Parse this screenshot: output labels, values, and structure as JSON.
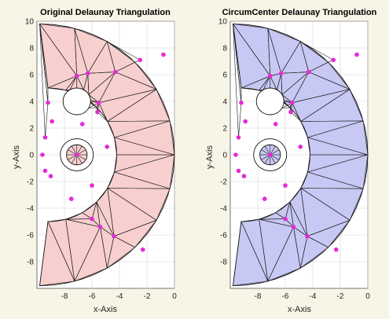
{
  "chart_data": [
    {
      "type": "scatter",
      "title": "Original Delaunay Triangulation",
      "xlabel": "x-Axis",
      "ylabel": "y-Axis",
      "xlim": [
        -10,
        0
      ],
      "ylim": [
        -10,
        10
      ],
      "xticks": [
        -8,
        -6,
        -4,
        -2,
        0
      ],
      "yticks": [
        -8,
        -6,
        -4,
        -2,
        0,
        2,
        4,
        6,
        8,
        10
      ],
      "grid": true,
      "domain_fill": "#f7cfcf",
      "point_color": "#e62ad8",
      "points": [
        [
          -7.1,
          5.9
        ],
        [
          -6.3,
          6.1
        ],
        [
          -4.3,
          6.2
        ],
        [
          -2.5,
          7.1
        ],
        [
          -0.8,
          7.5
        ],
        [
          -9.2,
          3.9
        ],
        [
          -5.5,
          3.9
        ],
        [
          -8.9,
          2.5
        ],
        [
          -6.7,
          2.3
        ],
        [
          -5.6,
          3.2
        ],
        [
          -9.4,
          1.3
        ],
        [
          -4.9,
          0.6
        ],
        [
          -9.6,
          0.0
        ],
        [
          -7.1,
          0.0
        ],
        [
          -9.4,
          -1.2
        ],
        [
          -9.0,
          -1.6
        ],
        [
          -6.0,
          -2.3
        ],
        [
          -7.5,
          -3.3
        ],
        [
          -6.0,
          -4.8
        ],
        [
          -5.4,
          -5.4
        ],
        [
          -4.4,
          -6.1
        ],
        [
          -2.3,
          -7.1
        ]
      ]
    },
    {
      "type": "scatter",
      "title": "CircumCenter Delaunay Triangulation",
      "xlabel": "x-Axis",
      "ylabel": "y-Axis",
      "xlim": [
        -10,
        0
      ],
      "ylim": [
        -10,
        10
      ],
      "xticks": [
        -8,
        -6,
        -4,
        -2,
        0
      ],
      "yticks": [
        -8,
        -6,
        -4,
        -2,
        0,
        2,
        4,
        6,
        8,
        10
      ],
      "grid": true,
      "domain_fill": "#c8c8f4",
      "point_color": "#e62ad8",
      "points": [
        [
          -7.1,
          5.9
        ],
        [
          -6.3,
          6.1
        ],
        [
          -4.3,
          6.2
        ],
        [
          -2.5,
          7.1
        ],
        [
          -0.8,
          7.5
        ],
        [
          -9.2,
          3.9
        ],
        [
          -5.5,
          3.9
        ],
        [
          -8.9,
          2.5
        ],
        [
          -6.7,
          2.3
        ],
        [
          -5.6,
          3.2
        ],
        [
          -9.4,
          1.3
        ],
        [
          -4.9,
          0.6
        ],
        [
          -9.6,
          0.0
        ],
        [
          -7.1,
          0.0
        ],
        [
          -9.4,
          -1.2
        ],
        [
          -9.0,
          -1.6
        ],
        [
          -6.0,
          -2.3
        ],
        [
          -7.5,
          -3.3
        ],
        [
          -6.0,
          -4.8
        ],
        [
          -5.4,
          -5.4
        ],
        [
          -4.4,
          -6.1
        ],
        [
          -2.3,
          -7.1
        ]
      ]
    }
  ]
}
